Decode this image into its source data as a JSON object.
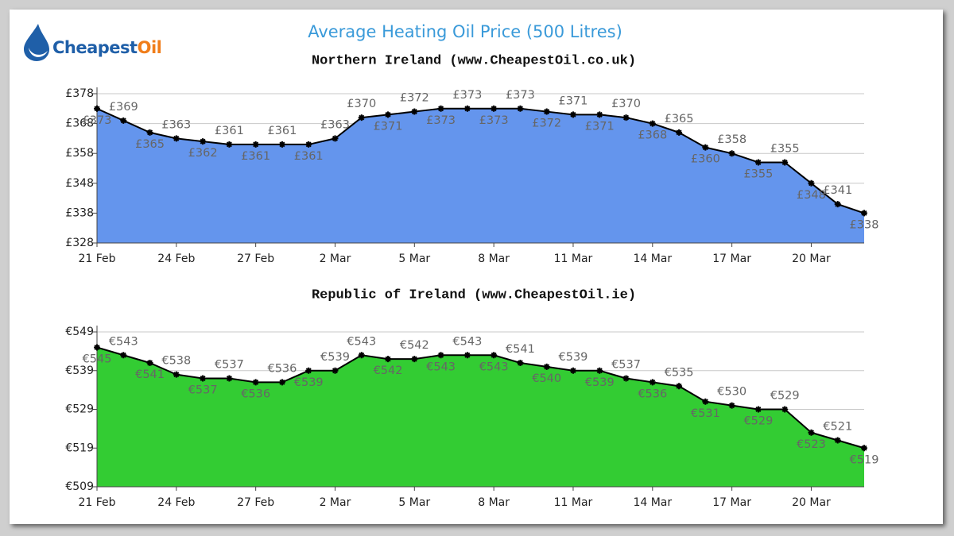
{
  "title": "Average Heating Oil Price (500 Litres)",
  "logo": {
    "brand": "Cheapest",
    "accent": "Oil"
  },
  "chart_data": [
    {
      "type": "area",
      "title": "Northern Ireland (www.CheapestOil.co.uk)",
      "color": "#6495ed",
      "line_color": "#000000",
      "grid": true,
      "categories": [
        "21 Feb",
        null,
        null,
        "24 Feb",
        null,
        null,
        "27 Feb",
        null,
        null,
        "2 Mar",
        null,
        null,
        "5 Mar",
        null,
        null,
        "8 Mar",
        null,
        null,
        "11 Mar",
        null,
        null,
        "14 Mar",
        null,
        null,
        "17 Mar",
        null,
        null,
        "20 Mar",
        null,
        null
      ],
      "values": [
        373,
        369,
        365,
        363,
        362,
        361,
        361,
        361,
        361,
        363,
        370,
        371,
        372,
        373,
        373,
        373,
        373,
        372,
        371,
        371,
        370,
        368,
        365,
        360,
        358,
        355,
        355,
        348,
        341,
        338
      ],
      "value_labels": [
        "£373",
        "£369",
        "£365",
        "£363",
        "£362",
        "£361",
        "£361",
        "£361",
        "£361",
        "£363",
        "£370",
        "£371",
        "£372",
        "£373",
        "£373",
        "£373",
        "£373",
        "£372",
        "£371",
        "£371",
        "£370",
        "£368",
        "£365",
        "£360",
        "£358",
        "£355",
        "£355",
        "£348",
        "£341",
        "£338"
      ],
      "ylim": [
        328,
        378
      ],
      "yticks": [
        {
          "value": 328,
          "label": "£328"
        },
        {
          "value": 338,
          "label": "£338"
        },
        {
          "value": 348,
          "label": "£348"
        },
        {
          "value": 358,
          "label": "£358"
        },
        {
          "value": 368,
          "label": "£368"
        },
        {
          "value": 378,
          "label": "£378"
        }
      ]
    },
    {
      "type": "area",
      "title": "Republic of Ireland (www.CheapestOil.ie)",
      "color": "#33cc33",
      "line_color": "#000000",
      "grid": true,
      "categories": [
        "21 Feb",
        null,
        null,
        "24 Feb",
        null,
        null,
        "27 Feb",
        null,
        null,
        "2 Mar",
        null,
        null,
        "5 Mar",
        null,
        null,
        "8 Mar",
        null,
        null,
        "11 Mar",
        null,
        null,
        "14 Mar",
        null,
        null,
        "17 Mar",
        null,
        null,
        "20 Mar",
        null,
        null
      ],
      "values": [
        545,
        543,
        541,
        538,
        537,
        537,
        536,
        536,
        539,
        539,
        543,
        542,
        542,
        543,
        543,
        543,
        541,
        540,
        539,
        539,
        537,
        536,
        535,
        531,
        530,
        529,
        529,
        523,
        521,
        519
      ],
      "value_labels": [
        "€545",
        "€543",
        "€541",
        "€538",
        "€537",
        "€537",
        "€536",
        "€536",
        "€539",
        "€539",
        "€543",
        "€542",
        "€542",
        "€543",
        "€543",
        "€543",
        "€541",
        "€540",
        "€539",
        "€539",
        "€537",
        "€536",
        "€535",
        "€531",
        "€530",
        "€529",
        "€529",
        "€523",
        "€521",
        "€519"
      ],
      "ylim": [
        509,
        549
      ],
      "yticks": [
        {
          "value": 509,
          "label": "€509"
        },
        {
          "value": 519,
          "label": "€519"
        },
        {
          "value": 529,
          "label": "€529"
        },
        {
          "value": 539,
          "label": "€539"
        },
        {
          "value": 549,
          "label": "€549"
        }
      ]
    }
  ]
}
